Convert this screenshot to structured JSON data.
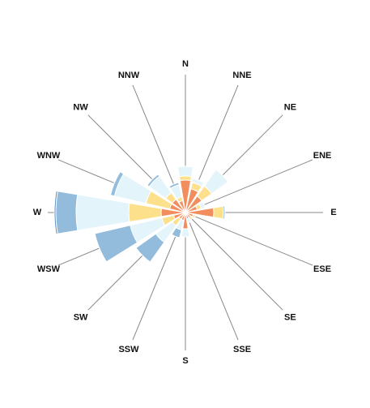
{
  "chart_data": {
    "type": "polar-stacked-bar",
    "categories": [
      "N",
      "NNE",
      "NE",
      "ENE",
      "E",
      "ESE",
      "SE",
      "SSE",
      "S",
      "SSW",
      "SW",
      "WSW",
      "W",
      "WNW",
      "NW",
      "NNW"
    ],
    "rlim": [
      0,
      180
    ],
    "series": [
      {
        "color": "#f28e5e",
        "values": [
          40,
          30,
          25,
          15,
          35,
          10,
          8,
          8,
          20,
          10,
          10,
          15,
          30,
          20,
          20,
          15
        ]
      },
      {
        "color": "#fde08b",
        "values": [
          5,
          8,
          15,
          5,
          12,
          3,
          3,
          0,
          0,
          0,
          10,
          15,
          40,
          30,
          10,
          5
        ]
      },
      {
        "color": "#e3f4fa",
        "values": [
          12,
          5,
          25,
          5,
          0,
          0,
          0,
          5,
          10,
          12,
          25,
          40,
          65,
          40,
          25,
          15
        ]
      },
      {
        "color": "#93bcdc",
        "values": [
          0,
          0,
          0,
          0,
          2,
          0,
          0,
          0,
          0,
          10,
          30,
          45,
          25,
          5,
          3,
          3
        ]
      },
      {
        "color": "#5f8fc2",
        "values": [
          0,
          0,
          0,
          0,
          0,
          0,
          0,
          0,
          0,
          0,
          0,
          0,
          2,
          0,
          0,
          0
        ]
      }
    ]
  }
}
